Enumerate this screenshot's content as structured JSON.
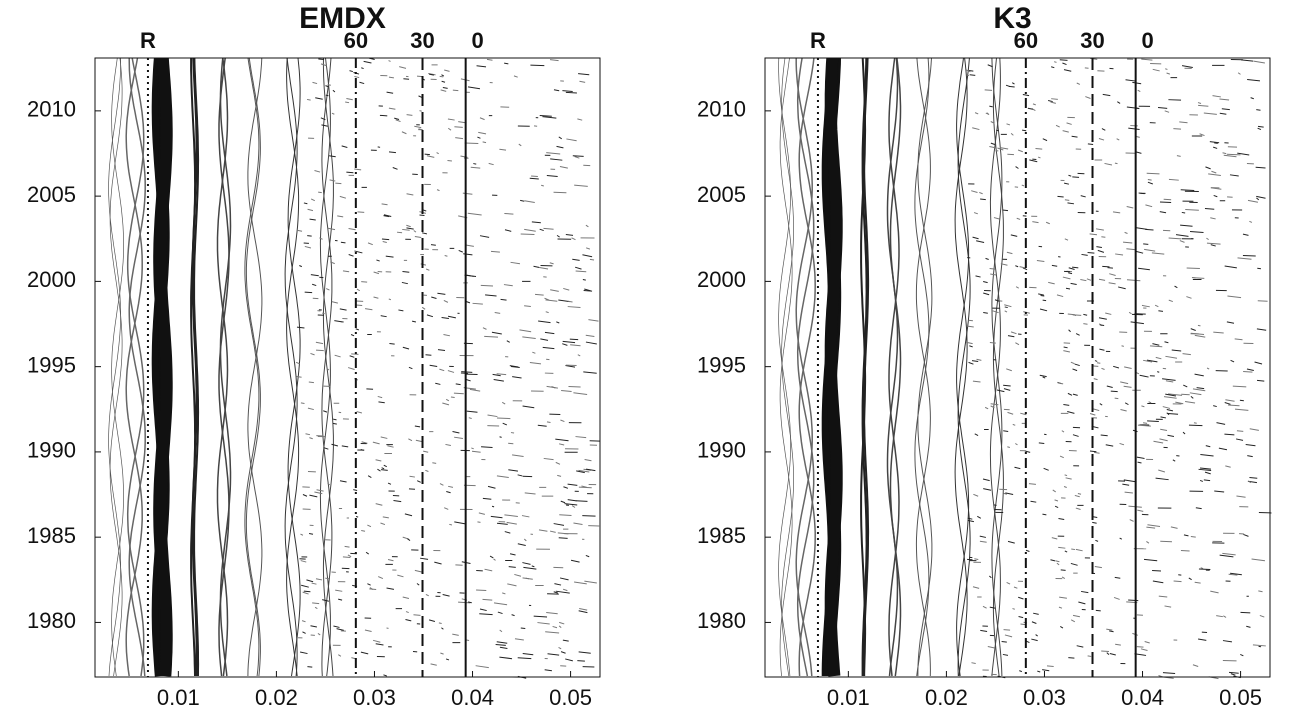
{
  "chart_data": [
    {
      "type": "spectrogram",
      "title": "EMDX",
      "xlim": [
        0.0015,
        0.053
      ],
      "ylim": [
        1976.8,
        2013.1
      ],
      "xticks": [
        0.01,
        0.02,
        0.03,
        0.04,
        0.05
      ],
      "yticks": [
        1980,
        1985,
        1990,
        1995,
        2000,
        2005,
        2010
      ],
      "reference_lines": [
        {
          "label": "R",
          "x": 0.0069,
          "style": "dotted"
        },
        {
          "label": "60",
          "x": 0.0281,
          "style": "dashdot"
        },
        {
          "label": "30",
          "x": 0.0349,
          "style": "dashed"
        },
        {
          "label": "0",
          "x": 0.0393,
          "style": "solid"
        }
      ]
    },
    {
      "type": "spectrogram",
      "title": "K3",
      "xlim": [
        0.0015,
        0.053
      ],
      "ylim": [
        1976.8,
        2013.1
      ],
      "xticks": [
        0.01,
        0.02,
        0.03,
        0.04,
        0.05
      ],
      "yticks": [
        1980,
        1985,
        1990,
        1995,
        2000,
        2005,
        2010
      ],
      "reference_lines": [
        {
          "label": "R",
          "x": 0.0069,
          "style": "dotted"
        },
        {
          "label": "60",
          "x": 0.0281,
          "style": "dashdot"
        },
        {
          "label": "30",
          "x": 0.0349,
          "style": "dashed"
        },
        {
          "label": "0",
          "x": 0.0393,
          "style": "solid"
        }
      ]
    }
  ]
}
